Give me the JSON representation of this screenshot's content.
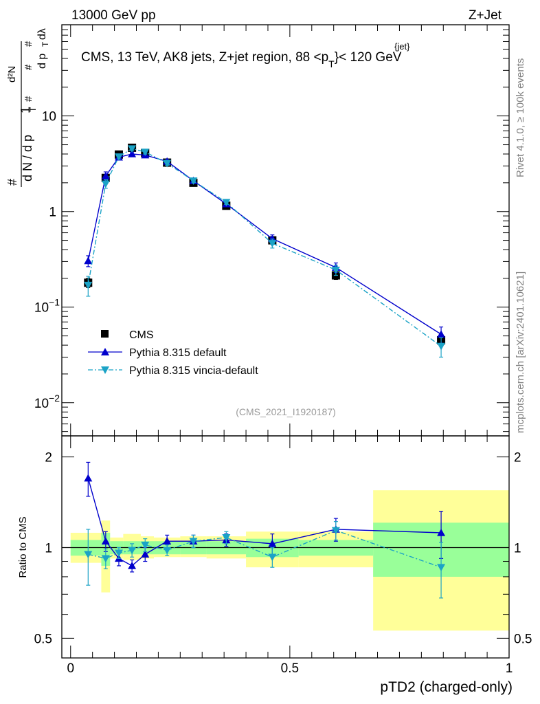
{
  "header": {
    "left": "13000 GeV pp",
    "right": "Z+Jet",
    "annotation": "CMS, 13 TeV, AK8 jets, Z+jet region, 88 <p",
    "annotation_sup": "{jet}",
    "annotation_sub": "T",
    "annotation_end": "}< 120 GeV",
    "analysis_id": "(CMS_2021_I1920187)"
  },
  "side_labels": {
    "top": "Rivet 4.1.0, ≥ 100k events",
    "bottom": "mcplots.cern.ch [arXiv:2401.10621]"
  },
  "colors": {
    "cms": "#000000",
    "default": "#0000cc",
    "vincia": "#1ba3c6",
    "band_inner": "#99ff99",
    "band_outer": "#ffff99"
  },
  "chart_data": [
    {
      "type": "line",
      "title": "CMS, 13 TeV, AK8 jets, Z+jet region, 88 < p_T^{jet} < 120 GeV",
      "xlabel": "pTD2 (charged-only)",
      "ylabel_parts": [
        "1",
        "d N / d p",
        "T",
        "#",
        "d²N",
        "d p",
        "T",
        "#",
        "dλ",
        "#",
        "#"
      ],
      "yscale": "log",
      "xlim": [
        -0.02,
        1.0
      ],
      "ylim": [
        0.0045,
        90
      ],
      "y_ticks": [
        {
          "value": 0.01,
          "base": "10",
          "exp": "−2"
        },
        {
          "value": 0.1,
          "base": "10",
          "exp": "−1"
        },
        {
          "value": 1,
          "base": "1",
          "exp": ""
        },
        {
          "value": 10,
          "base": "10",
          "exp": ""
        }
      ],
      "x_ticks": [
        {
          "value": 0,
          "label": "0"
        },
        {
          "value": 0.5,
          "label": "0.5"
        },
        {
          "value": 1,
          "label": "1"
        }
      ],
      "x": [
        0.04,
        0.08,
        0.11,
        0.14,
        0.17,
        0.22,
        0.28,
        0.355,
        0.46,
        0.605,
        0.845
      ],
      "series": [
        {
          "name": "CMS",
          "marker": "square",
          "values": [
            0.18,
            2.25,
            3.95,
            4.65,
            4.1,
            3.25,
            2.0,
            1.15,
            0.5,
            0.215,
            0.045
          ],
          "err_lo": [
            0.02,
            0.2,
            0.25,
            0.25,
            0.22,
            0.15,
            0.1,
            0.06,
            0.04,
            0.02,
            0.006
          ],
          "err_hi": [
            0.02,
            0.2,
            0.25,
            0.25,
            0.22,
            0.15,
            0.1,
            0.06,
            0.04,
            0.02,
            0.006
          ]
        },
        {
          "name": "Pythia 8.315 default",
          "marker": "triangle-up",
          "linestyle": "solid",
          "values": [
            0.305,
            2.35,
            3.7,
            4.0,
            3.9,
            3.35,
            2.1,
            1.2,
            0.52,
            0.26,
            0.052
          ],
          "err_lo": [
            0.04,
            0.25,
            0.2,
            0.2,
            0.2,
            0.15,
            0.1,
            0.06,
            0.05,
            0.03,
            0.01
          ],
          "err_hi": [
            0.04,
            0.25,
            0.2,
            0.2,
            0.2,
            0.15,
            0.1,
            0.06,
            0.05,
            0.03,
            0.01
          ]
        },
        {
          "name": "Pythia 8.315 vincia-default",
          "marker": "triangle-down",
          "linestyle": "dashdot",
          "values": [
            0.17,
            1.95,
            3.75,
            4.55,
            4.2,
            3.2,
            2.1,
            1.25,
            0.465,
            0.245,
            0.039
          ],
          "err_lo": [
            0.04,
            0.2,
            0.2,
            0.2,
            0.2,
            0.15,
            0.1,
            0.06,
            0.05,
            0.03,
            0.009
          ],
          "err_hi": [
            0.04,
            0.2,
            0.2,
            0.2,
            0.2,
            0.15,
            0.1,
            0.06,
            0.05,
            0.03,
            0.009
          ]
        }
      ],
      "legend": [
        "CMS",
        "Pythia 8.315 default",
        "Pythia 8.315 vincia-default"
      ],
      "legend_position": "left-middle"
    },
    {
      "type": "line",
      "title": "",
      "ylabel": "Ratio to CMS",
      "yscale": "log",
      "ylim": [
        0.43,
        2.35
      ],
      "y_ticks": [
        {
          "value": 0.5,
          "label": "0.5"
        },
        {
          "value": 1,
          "label": "1"
        },
        {
          "value": 2,
          "label": "2"
        }
      ],
      "bins": [
        {
          "lo": 0.0,
          "hi": 0.07,
          "inner": [
            0.94,
            1.06
          ],
          "outer": [
            0.89,
            1.12
          ]
        },
        {
          "lo": 0.07,
          "hi": 0.09,
          "inner": [
            0.87,
            1.12
          ],
          "outer": [
            0.71,
            1.23
          ]
        },
        {
          "lo": 0.09,
          "hi": 0.12,
          "inner": [
            0.95,
            1.05
          ],
          "outer": [
            0.92,
            1.08
          ]
        },
        {
          "lo": 0.12,
          "hi": 0.16,
          "inner": [
            0.95,
            1.05
          ],
          "outer": [
            0.91,
            1.11
          ]
        },
        {
          "lo": 0.16,
          "hi": 0.19,
          "inner": [
            0.95,
            1.05
          ],
          "outer": [
            0.92,
            1.09
          ]
        },
        {
          "lo": 0.19,
          "hi": 0.25,
          "inner": [
            0.95,
            1.05
          ],
          "outer": [
            0.93,
            1.08
          ]
        },
        {
          "lo": 0.25,
          "hi": 0.31,
          "inner": [
            0.95,
            1.05
          ],
          "outer": [
            0.93,
            1.09
          ]
        },
        {
          "lo": 0.31,
          "hi": 0.4,
          "inner": [
            0.95,
            1.05
          ],
          "outer": [
            0.92,
            1.09
          ]
        },
        {
          "lo": 0.4,
          "hi": 0.52,
          "inner": [
            0.93,
            1.07
          ],
          "outer": [
            0.86,
            1.13
          ]
        },
        {
          "lo": 0.52,
          "hi": 0.69,
          "inner": [
            0.94,
            1.06
          ],
          "outer": [
            0.86,
            1.13
          ]
        },
        {
          "lo": 0.69,
          "hi": 1.0,
          "inner": [
            0.8,
            1.21
          ],
          "outer": [
            0.53,
            1.55
          ]
        }
      ],
      "series": [
        {
          "name": "Pythia 8.315 default",
          "values": [
            1.7,
            1.05,
            0.92,
            0.87,
            0.95,
            1.05,
            1.05,
            1.06,
            1.03,
            1.15,
            1.12
          ],
          "err_lo": [
            0.22,
            0.08,
            0.05,
            0.04,
            0.05,
            0.05,
            0.05,
            0.05,
            0.08,
            0.1,
            0.2
          ],
          "err_hi": [
            0.22,
            0.08,
            0.05,
            0.04,
            0.05,
            0.05,
            0.05,
            0.05,
            0.08,
            0.1,
            0.2
          ]
        },
        {
          "name": "Pythia 8.315 vincia-default",
          "values": [
            0.95,
            0.92,
            0.96,
            0.98,
            1.02,
            0.98,
            1.05,
            1.08,
            0.93,
            1.14,
            0.86
          ],
          "err_lo": [
            0.2,
            0.07,
            0.04,
            0.05,
            0.05,
            0.04,
            0.05,
            0.05,
            0.07,
            0.08,
            0.18
          ],
          "err_hi": [
            0.2,
            0.07,
            0.04,
            0.05,
            0.05,
            0.04,
            0.05,
            0.05,
            0.07,
            0.08,
            0.18
          ]
        }
      ]
    }
  ]
}
